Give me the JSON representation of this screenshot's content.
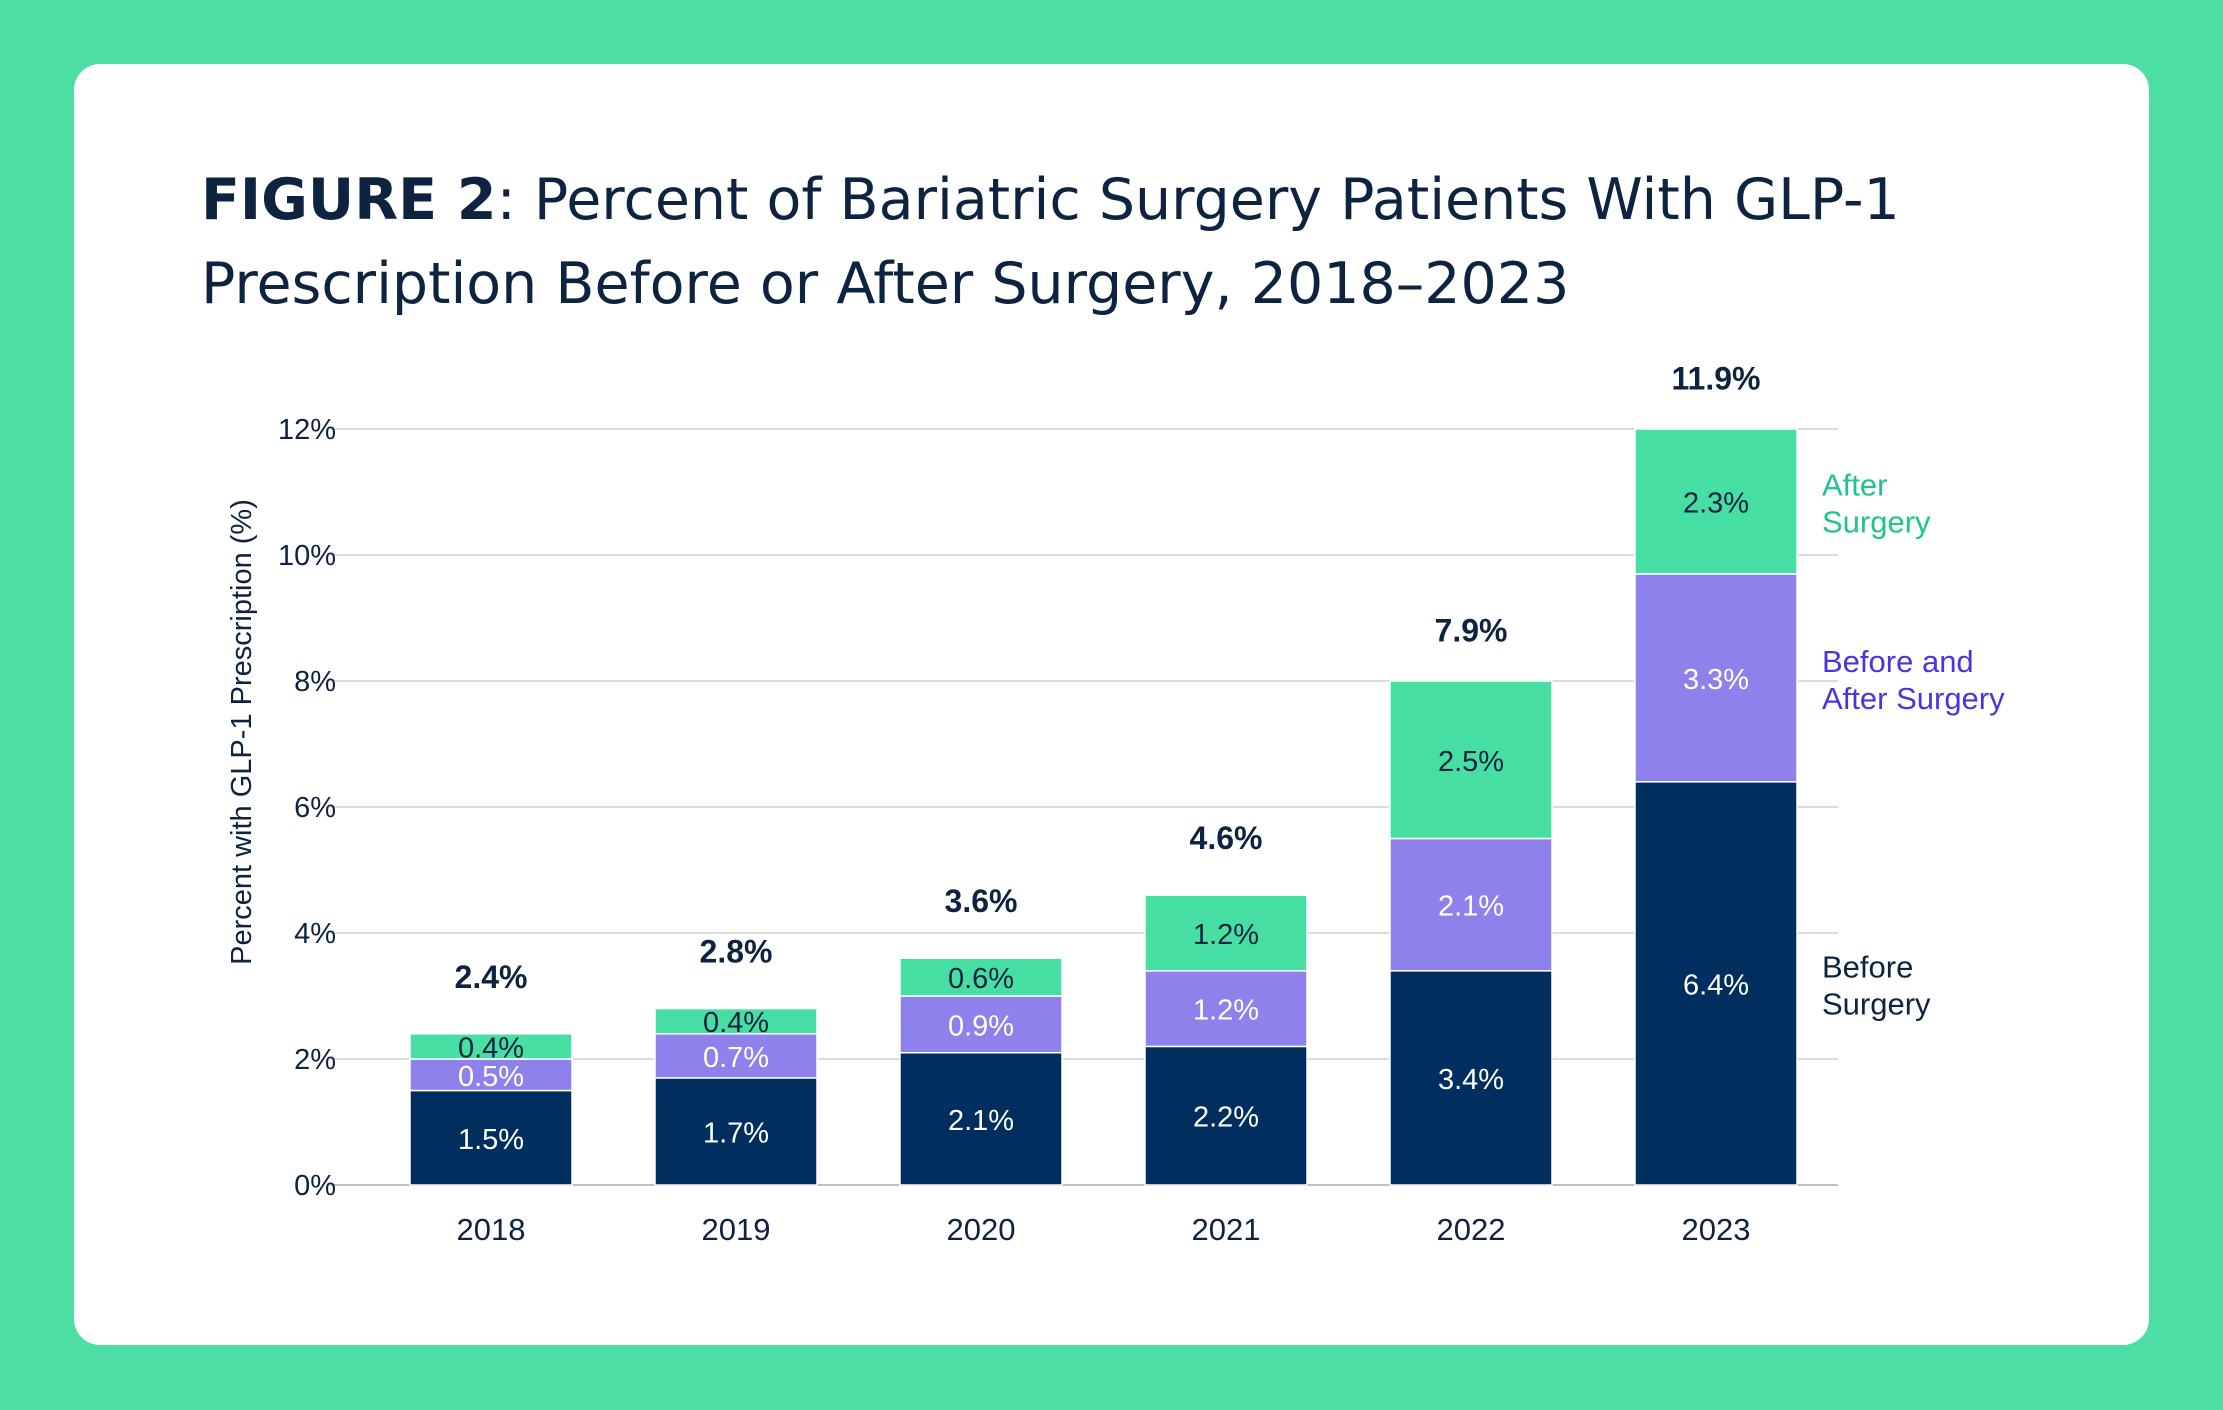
{
  "title_prefix": "FIGURE 2",
  "title_text": ": Percent of Bariatric Surgery Patients With GLP-1 Prescription Before or After Surgery, 2018–2023",
  "chart_data": {
    "type": "bar",
    "stacked": true,
    "categories": [
      "2018",
      "2019",
      "2020",
      "2021",
      "2022",
      "2023"
    ],
    "series": [
      {
        "name": "Before Surgery",
        "label": "Before Surgery",
        "color": "#002f5f",
        "label_color": "#0d2340",
        "values": [
          1.5,
          1.7,
          2.1,
          2.2,
          3.4,
          6.4
        ],
        "value_labels": [
          "1.5%",
          "1.7%",
          "2.1%",
          "2.2%",
          "3.4%",
          "6.4%"
        ]
      },
      {
        "name": "Before and After Surgery",
        "label": "Before and After Surgery",
        "color": "#8f81ec",
        "label_color": "#4a35db",
        "values": [
          0.5,
          0.7,
          0.9,
          1.2,
          2.1,
          3.3
        ],
        "value_labels": [
          "0.5%",
          "0.7%",
          "0.9%",
          "1.2%",
          "2.1%",
          "3.3%"
        ]
      },
      {
        "name": "After Surgery",
        "label": "After Surgery",
        "color": "#47dea3",
        "label_color": "#1ec48a",
        "values": [
          0.4,
          0.4,
          0.6,
          1.2,
          2.5,
          2.3
        ],
        "value_labels": [
          "0.4%",
          "0.4%",
          "0.6%",
          "1.2%",
          "2.5%",
          "2.3%"
        ]
      }
    ],
    "totals": [
      2.4,
      2.8,
      3.6,
      4.6,
      7.9,
      11.9
    ],
    "total_labels": [
      "2.4%",
      "2.8%",
      "3.6%",
      "4.6%",
      "7.9%",
      "11.9%"
    ],
    "ylabel": "Percent with GLP-1 Prescription (%)",
    "xlabel": "",
    "ylim": [
      0,
      12
    ],
    "yticks": [
      0,
      2,
      4,
      6,
      8,
      10,
      12
    ],
    "ytick_labels": [
      "0%",
      "2%",
      "4%",
      "6%",
      "8%",
      "10%",
      "12%"
    ],
    "grid": true,
    "legend_placement": "right, labels aligned to the last bar"
  }
}
